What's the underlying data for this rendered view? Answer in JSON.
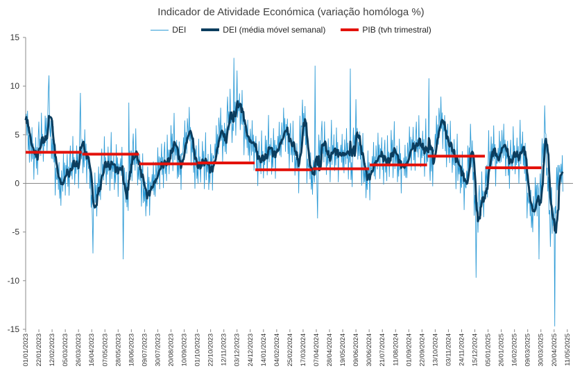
{
  "chart_data": {
    "type": "line",
    "title": "Indicador de Atividade Económica (variação homóloga %)",
    "ylim": [
      -15,
      15
    ],
    "yticks": [
      15,
      10,
      5,
      0,
      -5,
      -10,
      -15
    ],
    "ytick_labels": [
      "15",
      "10",
      "5",
      "0",
      "-5",
      "-10",
      "-15"
    ],
    "x_range": [
      "2023-01-01",
      "2025-05-20"
    ],
    "xtick_labels": [
      "01/01/2023",
      "22/01/2023",
      "12/02/2023",
      "05/03/2023",
      "26/03/2023",
      "16/04/2023",
      "07/05/2023",
      "28/05/2023",
      "18/06/2023",
      "09/07/2023",
      "30/07/2023",
      "20/08/2023",
      "10/09/2023",
      "01/10/2023",
      "22/10/2023",
      "12/11/2023",
      "03/12/2023",
      "24/12/2023",
      "14/01/2024",
      "04/02/2024",
      "25/02/2024",
      "17/03/2024",
      "07/04/2024",
      "28/04/2024",
      "19/05/2024",
      "09/06/2024",
      "30/06/2024",
      "21/07/2024",
      "11/08/2024",
      "01/09/2024",
      "22/09/2024",
      "13/10/2024",
      "03/11/2024",
      "24/11/2024",
      "15/12/2024",
      "05/01/2025",
      "26/01/2025",
      "16/02/2025",
      "09/03/2025",
      "30/03/2025",
      "20/04/2025",
      "11/05/2025"
    ],
    "legend_position": "top-center",
    "grid": false,
    "series": [
      {
        "name": "DEI",
        "color": "#2e9bd6",
        "kind": "daily",
        "anchor_dates": [
          "2023-01-01",
          "2023-01-08",
          "2023-01-15",
          "2023-01-22",
          "2023-01-29",
          "2023-02-05",
          "2023-02-12",
          "2023-02-19",
          "2023-02-26",
          "2023-03-05",
          "2023-03-12",
          "2023-03-19",
          "2023-03-26",
          "2023-04-02",
          "2023-04-09",
          "2023-04-16",
          "2023-04-23",
          "2023-04-30",
          "2023-05-07",
          "2023-05-14",
          "2023-05-21",
          "2023-05-28",
          "2023-06-04",
          "2023-06-11",
          "2023-06-18",
          "2023-06-25",
          "2023-07-02",
          "2023-07-09",
          "2023-07-16",
          "2023-07-23",
          "2023-07-30",
          "2023-08-06",
          "2023-08-13",
          "2023-08-20",
          "2023-08-27",
          "2023-09-03",
          "2023-09-10",
          "2023-09-17",
          "2023-09-24",
          "2023-10-01",
          "2023-10-08",
          "2023-10-15",
          "2023-10-22",
          "2023-10-29",
          "2023-11-05",
          "2023-11-12",
          "2023-11-19",
          "2023-11-26",
          "2023-12-03",
          "2023-12-10",
          "2023-12-17",
          "2023-12-24",
          "2023-12-31",
          "2024-01-07",
          "2024-01-14",
          "2024-01-21",
          "2024-01-28",
          "2024-02-04",
          "2024-02-11",
          "2024-02-18",
          "2024-02-25",
          "2024-03-03",
          "2024-03-10",
          "2024-03-17",
          "2024-03-24",
          "2024-03-31",
          "2024-04-07",
          "2024-04-14",
          "2024-04-21",
          "2024-04-28",
          "2024-05-05",
          "2024-05-12",
          "2024-05-19",
          "2024-05-26",
          "2024-06-02",
          "2024-06-09",
          "2024-06-16",
          "2024-06-23",
          "2024-06-30",
          "2024-07-07",
          "2024-07-14",
          "2024-07-21",
          "2024-07-28",
          "2024-08-04",
          "2024-08-11",
          "2024-08-18",
          "2024-08-25",
          "2024-09-01",
          "2024-09-08",
          "2024-09-15",
          "2024-09-22",
          "2024-09-29",
          "2024-10-06",
          "2024-10-13",
          "2024-10-20",
          "2024-10-27",
          "2024-11-03",
          "2024-11-10",
          "2024-11-17",
          "2024-11-24",
          "2024-12-01",
          "2024-12-08",
          "2024-12-15",
          "2024-12-22",
          "2024-12-29",
          "2025-01-05",
          "2025-01-12",
          "2025-01-19",
          "2025-01-26",
          "2025-02-02",
          "2025-02-09",
          "2025-02-16",
          "2025-02-23",
          "2025-03-02",
          "2025-03-09",
          "2025-03-16",
          "2025-03-23",
          "2025-03-30",
          "2025-04-06",
          "2025-04-13",
          "2025-04-20",
          "2025-04-27",
          "2025-05-04",
          "2025-05-11",
          "2025-05-18"
        ],
        "weekly_level": [
          6.5,
          3.5,
          2.5,
          4.0,
          4.2,
          6.0,
          4.5,
          0.5,
          -0.5,
          1.0,
          1.5,
          1.8,
          2.0,
          3.2,
          2.8,
          -1.8,
          -1.5,
          1.0,
          1.8,
          1.8,
          1.5,
          1.5,
          1.5,
          -2.0,
          3.0,
          2.5,
          0.8,
          -1.5,
          -0.5,
          0.0,
          1.0,
          2.5,
          1.5,
          4.0,
          3.5,
          1.5,
          4.0,
          5.5,
          3.0,
          1.0,
          2.5,
          1.5,
          1.5,
          3.0,
          5.5,
          4.0,
          7.0,
          6.0,
          8.0,
          7.5,
          4.5,
          4.0,
          3.5,
          2.0,
          2.5,
          3.5,
          3.0,
          3.5,
          4.5,
          5.5,
          4.0,
          3.0,
          1.5,
          8.0,
          2.0,
          0.5,
          1.5,
          4.5,
          3.0,
          2.5,
          3.5,
          3.0,
          2.8,
          3.0,
          1.8,
          5.5,
          3.0,
          0.5,
          1.0,
          2.0,
          2.5,
          3.0,
          1.5,
          3.5,
          2.5,
          2.0,
          1.5,
          3.0,
          4.0,
          4.0,
          3.5,
          3.0,
          1.5,
          4.0,
          6.5,
          5.5,
          3.5,
          3.0,
          1.5,
          1.0,
          -0.5,
          4.5,
          -2.0,
          -2.5,
          -1.5,
          1.5,
          4.0,
          2.0,
          4.0,
          3.0,
          2.0,
          3.0,
          2.5,
          4.0,
          -1.5,
          -3.5,
          -1.5,
          1.0,
          5.5,
          -4.0,
          -4.0,
          1.5,
          0.5
        ],
        "day_offsets": [
          0.0,
          1.2,
          -0.8,
          2.5,
          -1.5,
          0.7,
          -2.0,
          1.8,
          0.3,
          -1.1,
          3.0,
          -0.5,
          1.5,
          -2.5,
          0.9,
          -0.2,
          2.0,
          -1.8,
          0.4,
          -3.0,
          1.1,
          2.6,
          -0.9,
          0.6,
          -1.4,
          3.5,
          -0.3,
          1.0,
          -2.2,
          0.2,
          -1.0,
          2.2,
          -0.6,
          1.4,
          -2.8,
          0.5,
          4.0,
          -1.3,
          0.8,
          -0.4,
          1.7,
          -2.4,
          0.1,
          -1.6,
          2.8,
          -0.7,
          1.3,
          -3.2,
          0.6,
          0.0
        ],
        "spikes": [
          [
            "2023-02-07",
            11.1
          ],
          [
            "2023-03-29",
            9.3
          ],
          [
            "2023-04-18",
            -7.2
          ],
          [
            "2023-06-05",
            -7.8
          ],
          [
            "2023-06-14",
            8.3
          ],
          [
            "2023-11-28",
            12.9
          ],
          [
            "2024-04-05",
            12.1
          ],
          [
            "2024-05-31",
            11.8
          ],
          [
            "2024-10-03",
            10.8
          ],
          [
            "2024-12-17",
            -9.7
          ],
          [
            "2025-04-21",
            -14.7
          ],
          [
            "2025-03-27",
            -7.8
          ],
          [
            "2024-04-09",
            -3.6
          ]
        ]
      },
      {
        "name": "DEI (média móvel semanal)",
        "color": "#0b3d5e",
        "kind": "weekly_moving_average_of_DEI"
      },
      {
        "name": "PIB (tvh trimestral)",
        "color": "#e3120b",
        "kind": "step",
        "segments": [
          {
            "from": "2023-01-01",
            "to": "2023-03-31",
            "value": 3.2
          },
          {
            "from": "2023-04-01",
            "to": "2023-06-30",
            "value": 3.0
          },
          {
            "from": "2023-07-01",
            "to": "2023-09-30",
            "value": 2.0
          },
          {
            "from": "2023-10-01",
            "to": "2023-12-31",
            "value": 2.1
          },
          {
            "from": "2024-01-01",
            "to": "2024-03-31",
            "value": 1.4
          },
          {
            "from": "2024-04-01",
            "to": "2024-06-30",
            "value": 1.5
          },
          {
            "from": "2024-07-01",
            "to": "2024-09-30",
            "value": 1.9
          },
          {
            "from": "2024-10-01",
            "to": "2024-12-31",
            "value": 2.8
          },
          {
            "from": "2025-01-01",
            "to": "2025-03-31",
            "value": 1.6
          }
        ]
      }
    ]
  }
}
